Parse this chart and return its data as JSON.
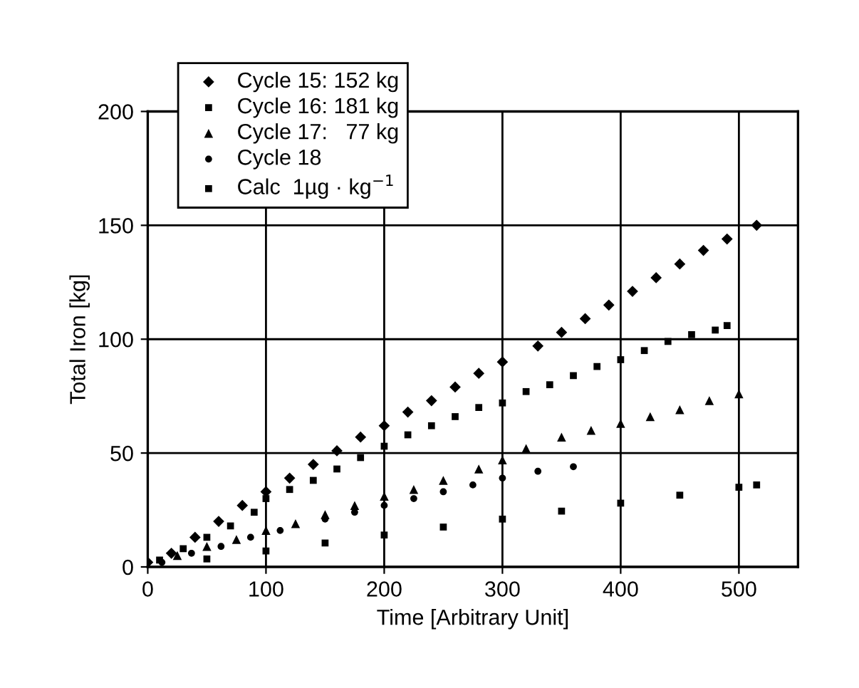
{
  "chart_data": {
    "type": "scatter",
    "xlabel": "Time [Arbitrary Unit]",
    "ylabel": "Total Iron [kg]",
    "xlim": [
      0,
      550
    ],
    "ylim": [
      0,
      200
    ],
    "xticks": [
      0,
      100,
      200,
      300,
      400,
      500
    ],
    "yticks": [
      0,
      50,
      100,
      150,
      200
    ],
    "grid": true,
    "legend": "top left",
    "series": [
      {
        "name": "Cycle 15: 152 kg",
        "color": "#000000",
        "marker": "diamond",
        "x": [
          0,
          20,
          40,
          60,
          80,
          100,
          120,
          140,
          160,
          180,
          200,
          220,
          240,
          260,
          280,
          300,
          330,
          350,
          370,
          390,
          410,
          430,
          450,
          470,
          490,
          515
        ],
        "values": [
          2,
          6,
          13,
          20,
          27,
          33,
          39,
          45,
          51,
          57,
          62,
          68,
          73,
          79,
          85,
          90,
          97,
          103,
          109,
          115,
          121,
          127,
          133,
          139,
          144,
          150
        ]
      },
      {
        "name": "Cycle 16: 181 kg",
        "color": "#000000",
        "marker": "square",
        "x": [
          10,
          30,
          50,
          70,
          90,
          100,
          120,
          140,
          160,
          180,
          200,
          220,
          240,
          260,
          280,
          300,
          320,
          340,
          360,
          380,
          400,
          420,
          440,
          460,
          480,
          490
        ],
        "values": [
          3,
          8,
          13,
          18,
          24,
          30,
          34,
          38,
          43,
          48,
          53,
          58,
          62,
          66,
          70,
          72,
          77,
          80,
          84,
          88,
          91,
          95,
          99,
          102,
          104,
          106
        ]
      },
      {
        "name": "Cycle 17:   77 kg",
        "color": "#000000",
        "marker": "triangle",
        "x": [
          25,
          50,
          75,
          100,
          125,
          150,
          175,
          200,
          225,
          250,
          280,
          300,
          320,
          350,
          375,
          400,
          425,
          450,
          475,
          500
        ],
        "values": [
          5,
          9,
          12,
          16,
          19,
          23,
          27,
          31,
          34,
          38,
          43,
          47,
          52,
          57,
          60,
          63,
          66,
          69,
          73,
          76
        ]
      },
      {
        "name": "Cycle 18",
        "color": "#000000",
        "marker": "circle",
        "x": [
          12,
          37,
          62,
          87,
          112,
          150,
          175,
          200,
          225,
          250,
          275,
          300,
          330,
          360
        ],
        "values": [
          2,
          6,
          9,
          13,
          16,
          21,
          24,
          27,
          30,
          33,
          36,
          39,
          42,
          44
        ]
      },
      {
        "name": "Calc  1µg · kg$^{−1}$",
        "color": "#000000",
        "marker": "square",
        "x": [
          50,
          100,
          150,
          200,
          250,
          300,
          350,
          400,
          450,
          500,
          515
        ],
        "values": [
          3.5,
          7,
          10.5,
          14,
          17.5,
          21,
          24.5,
          28,
          31.5,
          35,
          36
        ]
      }
    ]
  }
}
